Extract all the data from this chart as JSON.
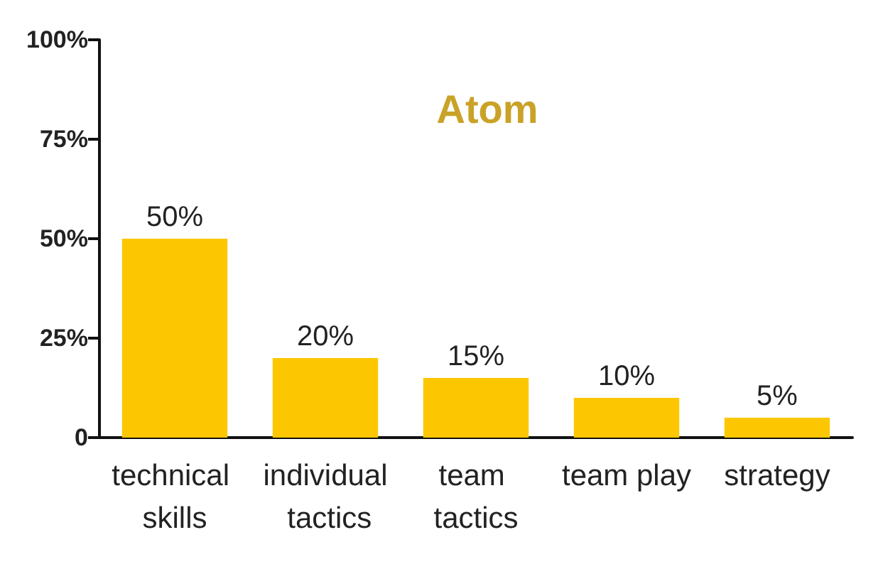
{
  "chart_data": {
    "type": "bar",
    "title": "Atom",
    "categories": [
      "technical skills",
      "individual tactics",
      "team tactics",
      "team play",
      "strategy"
    ],
    "values": [
      50,
      20,
      15,
      10,
      5
    ],
    "value_labels": [
      "50%",
      "20%",
      "15%",
      "10%",
      "5%"
    ],
    "color": "#fcc700",
    "ylim": [
      0,
      100
    ],
    "yticks": [
      {
        "value": 0,
        "label": "0"
      },
      {
        "value": 25,
        "label": "25%"
      },
      {
        "value": 50,
        "label": "50%"
      },
      {
        "value": 75,
        "label": "75%"
      },
      {
        "value": 100,
        "label": "100%"
      }
    ],
    "grid": false
  }
}
